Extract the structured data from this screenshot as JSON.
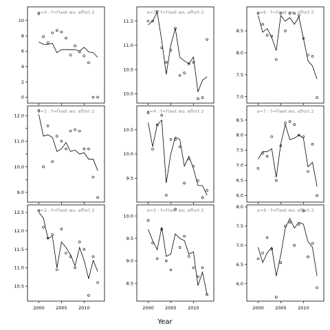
{
  "chart_data": {
    "type": "scatter",
    "xlabel": "Year",
    "ylabel": "",
    "xlim": [
      1997.5,
      2014.5
    ],
    "x_ticks": [
      2000,
      2005,
      2010
    ],
    "x_tick_labels": [
      "2000",
      "2005",
      "2010"
    ],
    "years": [
      2000,
      2001,
      2002,
      2003,
      2004,
      2005,
      2006,
      2007,
      2008,
      2009,
      2010,
      2011,
      2012,
      2013
    ],
    "panels": [
      {
        "label": "a=0  :  f=Fleet wo. effort 2",
        "ylim": [
          -0.5,
          11.5
        ],
        "y_ticks": [
          0,
          2,
          4,
          6,
          8,
          10
        ],
        "y_tick_labels": [
          "0",
          "2",
          "4",
          "6",
          "8",
          "10"
        ],
        "observed": [
          10.9,
          7.9,
          7.1,
          8.4,
          8.7,
          8.5,
          7.7,
          5.5,
          6.7,
          5.9,
          5.4,
          4.5,
          0.0,
          0.0
        ],
        "fitted": [
          7.2,
          6.9,
          6.9,
          7.0,
          5.8,
          6.2,
          6.2,
          6.2,
          6.2,
          6.0,
          6.5,
          5.9,
          5.8,
          5.2
        ]
      },
      {
        "label": "a=3  :  f=Fleet wo. effort 2",
        "ylim": [
          9.85,
          11.75
        ],
        "y_ticks": [
          10.0,
          10.5,
          11.0,
          11.5
        ],
        "y_tick_labels": [
          "10.0",
          "10.5",
          "11.0",
          "11.5"
        ],
        "observed": [
          11.5,
          11.5,
          11.7,
          10.95,
          10.65,
          10.9,
          11.35,
          10.38,
          10.43,
          10.62,
          10.65,
          9.9,
          9.92,
          11.12
        ],
        "fitted": [
          11.42,
          11.5,
          11.68,
          11.1,
          10.4,
          11.0,
          11.35,
          10.75,
          10.68,
          10.62,
          10.76,
          10.04,
          10.28,
          10.35
        ]
      },
      {
        "label": "a=6  :  f=Fleet wo. effort 2",
        "ylim": [
          6.9,
          9.0
        ],
        "y_ticks": [
          7.0,
          7.5,
          8.0,
          8.5
        ],
        "y_tick_labels": [
          "7.0",
          "7.5",
          "8.0",
          "8.5"
        ],
        "observed": [
          8.9,
          8.65,
          8.4,
          8.38,
          7.85,
          8.9,
          8.5,
          8.9,
          8.9,
          8.85,
          8.33,
          7.95,
          7.92,
          6.98
        ],
        "fitted": [
          8.85,
          8.47,
          8.55,
          8.35,
          8.05,
          8.85,
          8.72,
          8.8,
          8.65,
          8.82,
          8.33,
          7.82,
          7.7,
          7.4
        ]
      },
      {
        "label": "a=1  :  f=Fleet wo. effort 2",
        "ylim": [
          8.7,
          12.3
        ],
        "y_ticks": [
          9.0,
          9.5,
          10.0,
          10.5,
          11.0,
          11.5,
          12.0
        ],
        "y_tick_labels": [
          "9.0",
          "",
          "10.0",
          "",
          "11.0",
          "",
          "12.0"
        ],
        "observed": [
          12.2,
          10.0,
          11.6,
          10.2,
          11.2,
          11.0,
          10.7,
          11.4,
          11.45,
          11.4,
          10.7,
          10.7,
          9.6,
          8.8
        ],
        "fitted": [
          12.05,
          11.2,
          11.25,
          11.15,
          10.6,
          10.7,
          10.95,
          10.6,
          10.65,
          10.5,
          10.55,
          10.3,
          10.3,
          9.85
        ]
      },
      {
        "label": "a=4  :  f=Fleet wo. effort 2",
        "ylim": [
          9.05,
          10.95
        ],
        "y_ticks": [
          9.5,
          10.0,
          10.5
        ],
        "y_tick_labels": [
          "9.5",
          "10.0",
          "10.5"
        ],
        "observed": [
          10.85,
          10.1,
          10.6,
          10.8,
          9.15,
          10.3,
          10.3,
          10.15,
          9.4,
          9.9,
          9.75,
          9.45,
          9.1,
          9.25
        ],
        "fitted": [
          10.65,
          10.15,
          10.6,
          10.7,
          9.4,
          10.0,
          10.35,
          10.3,
          9.75,
          9.95,
          9.7,
          9.35,
          9.35,
          9.15
        ]
      },
      {
        "label": "a=7  :  f=Fleet wo. effort 2",
        "ylim": [
          5.85,
          8.9
        ],
        "y_ticks": [
          6.0,
          6.5,
          7.0,
          7.5,
          8.0,
          8.5
        ],
        "y_tick_labels": [
          "6.0",
          "6.5",
          "7.0",
          "7.5",
          "8.0",
          "8.5"
        ],
        "observed": [
          6.9,
          7.4,
          7.3,
          7.95,
          6.5,
          7.65,
          8.4,
          8.45,
          8.35,
          8.0,
          7.95,
          6.8,
          7.7,
          6.0
        ],
        "fitted": [
          7.2,
          7.45,
          7.45,
          7.55,
          6.6,
          7.7,
          8.35,
          7.85,
          7.9,
          8.0,
          7.9,
          6.95,
          7.1,
          6.3
        ]
      },
      {
        "label": "a=2  :  f=Fleet wo. effort 2",
        "ylim": [
          10.15,
          12.65
        ],
        "y_ticks": [
          10.5,
          11.0,
          11.5,
          12.0,
          12.5
        ],
        "y_tick_labels": [
          "10.5",
          "11.0",
          "11.5",
          "12.0",
          "12.5"
        ],
        "observed": [
          12.55,
          12.1,
          11.8,
          11.9,
          10.95,
          12.05,
          11.4,
          11.3,
          11.0,
          11.7,
          11.5,
          10.25,
          11.3,
          10.6
        ],
        "fitted": [
          12.5,
          12.35,
          11.8,
          11.85,
          11.0,
          11.7,
          11.55,
          11.35,
          11.05,
          11.55,
          11.2,
          10.7,
          11.2,
          10.9
        ]
      },
      {
        "label": "a=5  :  f=Fleet wo. effort 2",
        "ylim": [
          8.15,
          10.2
        ],
        "y_ticks": [
          8.5,
          9.0,
          9.5,
          10.0
        ],
        "y_tick_labels": [
          "8.5",
          "9.0",
          "9.5",
          "10.0"
        ],
        "observed": [
          9.9,
          9.4,
          9.05,
          9.7,
          9.0,
          8.8,
          10.15,
          9.3,
          9.55,
          9.1,
          8.85,
          8.65,
          8.85,
          8.25
        ],
        "fitted": [
          9.7,
          9.45,
          9.25,
          9.75,
          9.1,
          9.15,
          9.6,
          9.5,
          9.45,
          9.15,
          9.2,
          8.45,
          8.75,
          8.25
        ]
      },
      {
        "label": "a=8  :  f=Fleet wo. effort 2",
        "ylim": [
          5.6,
          8.0
        ],
        "y_ticks": [
          6.0,
          6.5,
          7.0,
          7.5,
          8.0
        ],
        "y_tick_labels": [
          "6.0",
          "6.5",
          "7.0",
          "7.5",
          "8.0"
        ],
        "observed": [
          6.65,
          6.8,
          7.2,
          6.9,
          5.65,
          6.55,
          7.5,
          7.6,
          7.0,
          7.55,
          7.9,
          6.7,
          7.05,
          5.9
        ],
        "fitted": [
          6.95,
          6.55,
          6.8,
          6.95,
          6.2,
          6.75,
          7.45,
          7.7,
          7.45,
          7.6,
          7.55,
          7.1,
          6.95,
          6.2
        ]
      }
    ]
  }
}
